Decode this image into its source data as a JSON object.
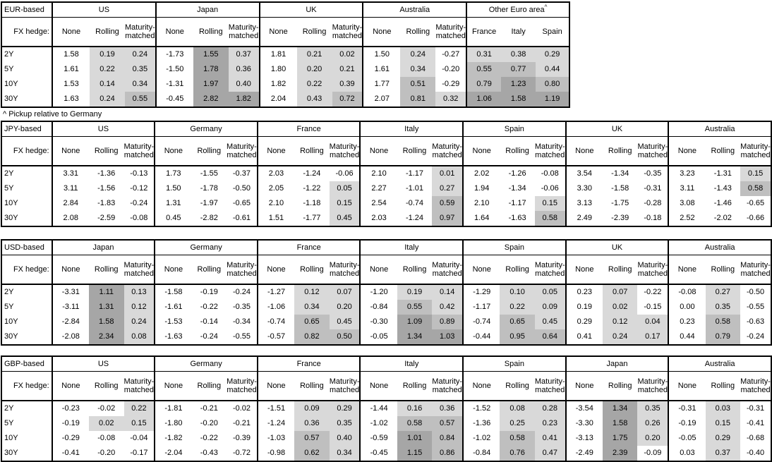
{
  "note": "^ Pickup relative to Germany",
  "shade_colors": {
    "light": "#d9d9d9",
    "medium": "#bfbfbf",
    "dark": "#a6a6a6"
  },
  "shade_rule": {
    "light_min": 0,
    "medium_min": 0.5,
    "dark_min": 1.0
  },
  "fx_hedge_label": "FX hedge:",
  "row_labels": [
    "2Y",
    "5Y",
    "10Y",
    "30Y"
  ],
  "tables": [
    {
      "id": "eur",
      "base_label": "EUR-based",
      "groups": [
        {
          "country": "US",
          "cols": [
            "None",
            "Rolling",
            "Maturity-matched"
          ],
          "shade_from": 1,
          "rows": [
            [
              "1.58",
              "0.19",
              "0.24"
            ],
            [
              "1.61",
              "0.22",
              "0.35"
            ],
            [
              "1.53",
              "0.14",
              "0.34"
            ],
            [
              "1.63",
              "0.24",
              "0.55"
            ]
          ]
        },
        {
          "country": "Japan",
          "cols": [
            "None",
            "Rolling",
            "Maturity-matched"
          ],
          "shade_from": 1,
          "rows": [
            [
              "-1.73",
              "1.55",
              "0.37"
            ],
            [
              "-1.50",
              "1.78",
              "0.36"
            ],
            [
              "-1.31",
              "1.97",
              "0.40"
            ],
            [
              "-0.45",
              "2.82",
              "1.82"
            ]
          ]
        },
        {
          "country": "UK",
          "cols": [
            "None",
            "Rolling",
            "Maturity-matched"
          ],
          "shade_from": 1,
          "rows": [
            [
              "1.81",
              "0.21",
              "0.02"
            ],
            [
              "1.80",
              "0.20",
              "0.21"
            ],
            [
              "1.82",
              "0.22",
              "0.39"
            ],
            [
              "2.04",
              "0.43",
              "0.72"
            ]
          ]
        },
        {
          "country": "Australia",
          "cols": [
            "None",
            "Rolling",
            "Maturity-matched"
          ],
          "shade_from": 1,
          "rows": [
            [
              "1.50",
              "0.24",
              "-0.27"
            ],
            [
              "1.61",
              "0.34",
              "-0.20"
            ],
            [
              "1.77",
              "0.51",
              "-0.29"
            ],
            [
              "2.07",
              "0.81",
              "0.32"
            ]
          ]
        },
        {
          "country": "Other Euro area",
          "superscript": "^",
          "cols": [
            "France",
            "Italy",
            "Spain"
          ],
          "shade_from": 0,
          "rows": [
            [
              "0.31",
              "0.38",
              "0.29"
            ],
            [
              "0.55",
              "0.77",
              "0.44"
            ],
            [
              "0.79",
              "1.23",
              "0.80"
            ],
            [
              "1.06",
              "1.58",
              "1.19"
            ]
          ]
        }
      ]
    },
    {
      "id": "jpy",
      "base_label": "JPY-based",
      "groups": [
        {
          "country": "US",
          "cols": [
            "None",
            "Rolling",
            "Maturity-matched"
          ],
          "shade_from": 1,
          "rows": [
            [
              "3.31",
              "-1.36",
              "-0.13"
            ],
            [
              "3.11",
              "-1.56",
              "-0.12"
            ],
            [
              "2.84",
              "-1.83",
              "-0.24"
            ],
            [
              "2.08",
              "-2.59",
              "-0.08"
            ]
          ]
        },
        {
          "country": "Germany",
          "cols": [
            "None",
            "Rolling",
            "Maturity-matched"
          ],
          "shade_from": 1,
          "rows": [
            [
              "1.73",
              "-1.55",
              "-0.37"
            ],
            [
              "1.50",
              "-1.78",
              "-0.50"
            ],
            [
              "1.31",
              "-1.97",
              "-0.65"
            ],
            [
              "0.45",
              "-2.82",
              "-0.61"
            ]
          ]
        },
        {
          "country": "France",
          "cols": [
            "None",
            "Rolling",
            "Maturity-matched"
          ],
          "shade_from": 1,
          "rows": [
            [
              "2.03",
              "-1.24",
              "-0.06"
            ],
            [
              "2.05",
              "-1.22",
              "0.05"
            ],
            [
              "2.10",
              "-1.18",
              "0.15"
            ],
            [
              "1.51",
              "-1.77",
              "0.45"
            ]
          ]
        },
        {
          "country": "Italy",
          "cols": [
            "None",
            "Rolling",
            "Maturity-matched"
          ],
          "shade_from": 1,
          "rows": [
            [
              "2.10",
              "-1.17",
              "0.01"
            ],
            [
              "2.27",
              "-1.01",
              "0.27"
            ],
            [
              "2.54",
              "-0.74",
              "0.59"
            ],
            [
              "2.03",
              "-1.24",
              "0.97"
            ]
          ]
        },
        {
          "country": "Spain",
          "cols": [
            "None",
            "Rolling",
            "Maturity-matched"
          ],
          "shade_from": 1,
          "rows": [
            [
              "2.02",
              "-1.26",
              "-0.08"
            ],
            [
              "1.94",
              "-1.34",
              "-0.06"
            ],
            [
              "2.10",
              "-1.17",
              "0.15"
            ],
            [
              "1.64",
              "-1.63",
              "0.58"
            ]
          ]
        },
        {
          "country": "UK",
          "cols": [
            "None",
            "Rolling",
            "Maturity-matched"
          ],
          "shade_from": 1,
          "rows": [
            [
              "3.54",
              "-1.34",
              "-0.35"
            ],
            [
              "3.30",
              "-1.58",
              "-0.31"
            ],
            [
              "3.13",
              "-1.75",
              "-0.28"
            ],
            [
              "2.49",
              "-2.39",
              "-0.18"
            ]
          ]
        },
        {
          "country": "Australia",
          "cols": [
            "None",
            "Rolling",
            "Maturity-matched"
          ],
          "shade_from": 1,
          "rows": [
            [
              "3.23",
              "-1.31",
              "0.15"
            ],
            [
              "3.11",
              "-1.43",
              "0.58"
            ],
            [
              "3.08",
              "-1.46",
              "-0.65"
            ],
            [
              "2.52",
              "-2.02",
              "-0.66"
            ]
          ]
        }
      ]
    },
    {
      "id": "usd",
      "base_label": "USD-based",
      "groups": [
        {
          "country": "Japan",
          "cols": [
            "None",
            "Rolling",
            "Maturity-matched"
          ],
          "shade_from": 1,
          "rows": [
            [
              "-3.31",
              "1.11",
              "0.13"
            ],
            [
              "-3.11",
              "1.31",
              "0.12"
            ],
            [
              "-2.84",
              "1.58",
              "0.24"
            ],
            [
              "-2.08",
              "2.34",
              "0.08"
            ]
          ]
        },
        {
          "country": "Germany",
          "cols": [
            "None",
            "Rolling",
            "Maturity-matched"
          ],
          "shade_from": 1,
          "rows": [
            [
              "-1.58",
              "-0.19",
              "-0.24"
            ],
            [
              "-1.61",
              "-0.22",
              "-0.35"
            ],
            [
              "-1.53",
              "-0.14",
              "-0.34"
            ],
            [
              "-1.63",
              "-0.24",
              "-0.55"
            ]
          ]
        },
        {
          "country": "France",
          "cols": [
            "None",
            "Rolling",
            "Maturity-matched"
          ],
          "shade_from": 1,
          "rows": [
            [
              "-1.27",
              "0.12",
              "0.07"
            ],
            [
              "-1.06",
              "0.34",
              "0.20"
            ],
            [
              "-0.74",
              "0.65",
              "0.45"
            ],
            [
              "-0.57",
              "0.82",
              "0.50"
            ]
          ]
        },
        {
          "country": "Italy",
          "cols": [
            "None",
            "Rolling",
            "Maturity-matched"
          ],
          "shade_from": 1,
          "rows": [
            [
              "-1.20",
              "0.19",
              "0.14"
            ],
            [
              "-0.84",
              "0.55",
              "0.42"
            ],
            [
              "-0.30",
              "1.09",
              "0.89"
            ],
            [
              "-0.05",
              "1.34",
              "1.03"
            ]
          ]
        },
        {
          "country": "Spain",
          "cols": [
            "None",
            "Rolling",
            "Maturity-matched"
          ],
          "shade_from": 1,
          "rows": [
            [
              "-1.29",
              "0.10",
              "0.05"
            ],
            [
              "-1.17",
              "0.22",
              "0.09"
            ],
            [
              "-0.74",
              "0.65",
              "0.45"
            ],
            [
              "-0.44",
              "0.95",
              "0.64"
            ]
          ]
        },
        {
          "country": "UK",
          "cols": [
            "None",
            "Rolling",
            "Maturity-matched"
          ],
          "shade_from": 1,
          "rows": [
            [
              "0.23",
              "0.07",
              "-0.22"
            ],
            [
              "0.19",
              "0.02",
              "-0.15"
            ],
            [
              "0.29",
              "0.12",
              "0.04"
            ],
            [
              "0.41",
              "0.24",
              "0.17"
            ]
          ]
        },
        {
          "country": "Australia",
          "cols": [
            "None",
            "Rolling",
            "Maturity-matched"
          ],
          "shade_from": 1,
          "rows": [
            [
              "-0.08",
              "0.27",
              "-0.50"
            ],
            [
              "0.00",
              "0.35",
              "-0.55"
            ],
            [
              "0.23",
              "0.58",
              "-0.63"
            ],
            [
              "0.44",
              "0.79",
              "-0.24"
            ]
          ]
        }
      ]
    },
    {
      "id": "gbp",
      "base_label": "GBP-based",
      "groups": [
        {
          "country": "US",
          "cols": [
            "None",
            "Rolling",
            "Maturity-matched"
          ],
          "shade_from": 1,
          "rows": [
            [
              "-0.23",
              "-0.02",
              "0.22"
            ],
            [
              "-0.19",
              "0.02",
              "0.15"
            ],
            [
              "-0.29",
              "-0.08",
              "-0.04"
            ],
            [
              "-0.41",
              "-0.20",
              "-0.17"
            ]
          ]
        },
        {
          "country": "Germany",
          "cols": [
            "None",
            "Rolling",
            "Maturity-matched"
          ],
          "shade_from": 1,
          "rows": [
            [
              "-1.81",
              "-0.21",
              "-0.02"
            ],
            [
              "-1.80",
              "-0.20",
              "-0.21"
            ],
            [
              "-1.82",
              "-0.22",
              "-0.39"
            ],
            [
              "-2.04",
              "-0.43",
              "-0.72"
            ]
          ]
        },
        {
          "country": "France",
          "cols": [
            "None",
            "Rolling",
            "Maturity-matched"
          ],
          "shade_from": 1,
          "rows": [
            [
              "-1.51",
              "0.09",
              "0.29"
            ],
            [
              "-1.24",
              "0.36",
              "0.35"
            ],
            [
              "-1.03",
              "0.57",
              "0.40"
            ],
            [
              "-0.98",
              "0.62",
              "0.34"
            ]
          ]
        },
        {
          "country": "Italy",
          "cols": [
            "None",
            "Rolling",
            "Maturity-matched"
          ],
          "shade_from": 1,
          "rows": [
            [
              "-1.44",
              "0.16",
              "0.36"
            ],
            [
              "-1.02",
              "0.58",
              "0.57"
            ],
            [
              "-0.59",
              "1.01",
              "0.84"
            ],
            [
              "-0.45",
              "1.15",
              "0.86"
            ]
          ]
        },
        {
          "country": "Spain",
          "cols": [
            "None",
            "Rolling",
            "Maturity-matched"
          ],
          "shade_from": 1,
          "rows": [
            [
              "-1.52",
              "0.08",
              "0.28"
            ],
            [
              "-1.36",
              "0.25",
              "0.23"
            ],
            [
              "-1.02",
              "0.58",
              "0.41"
            ],
            [
              "-0.84",
              "0.76",
              "0.47"
            ]
          ]
        },
        {
          "country": "Japan",
          "cols": [
            "None",
            "Rolling",
            "Maturity-matched"
          ],
          "shade_from": 1,
          "rows": [
            [
              "-3.54",
              "1.34",
              "0.35"
            ],
            [
              "-3.30",
              "1.58",
              "0.26"
            ],
            [
              "-3.13",
              "1.75",
              "0.20"
            ],
            [
              "-2.49",
              "2.39",
              "-0.09"
            ]
          ]
        },
        {
          "country": "Australia",
          "cols": [
            "None",
            "Rolling",
            "Maturity-matched"
          ],
          "shade_from": 1,
          "rows": [
            [
              "-0.31",
              "0.03",
              "-0.31"
            ],
            [
              "-0.19",
              "0.15",
              "-0.41"
            ],
            [
              "-0.05",
              "0.29",
              "-0.68"
            ],
            [
              "0.03",
              "0.37",
              "-0.40"
            ]
          ]
        }
      ]
    }
  ]
}
